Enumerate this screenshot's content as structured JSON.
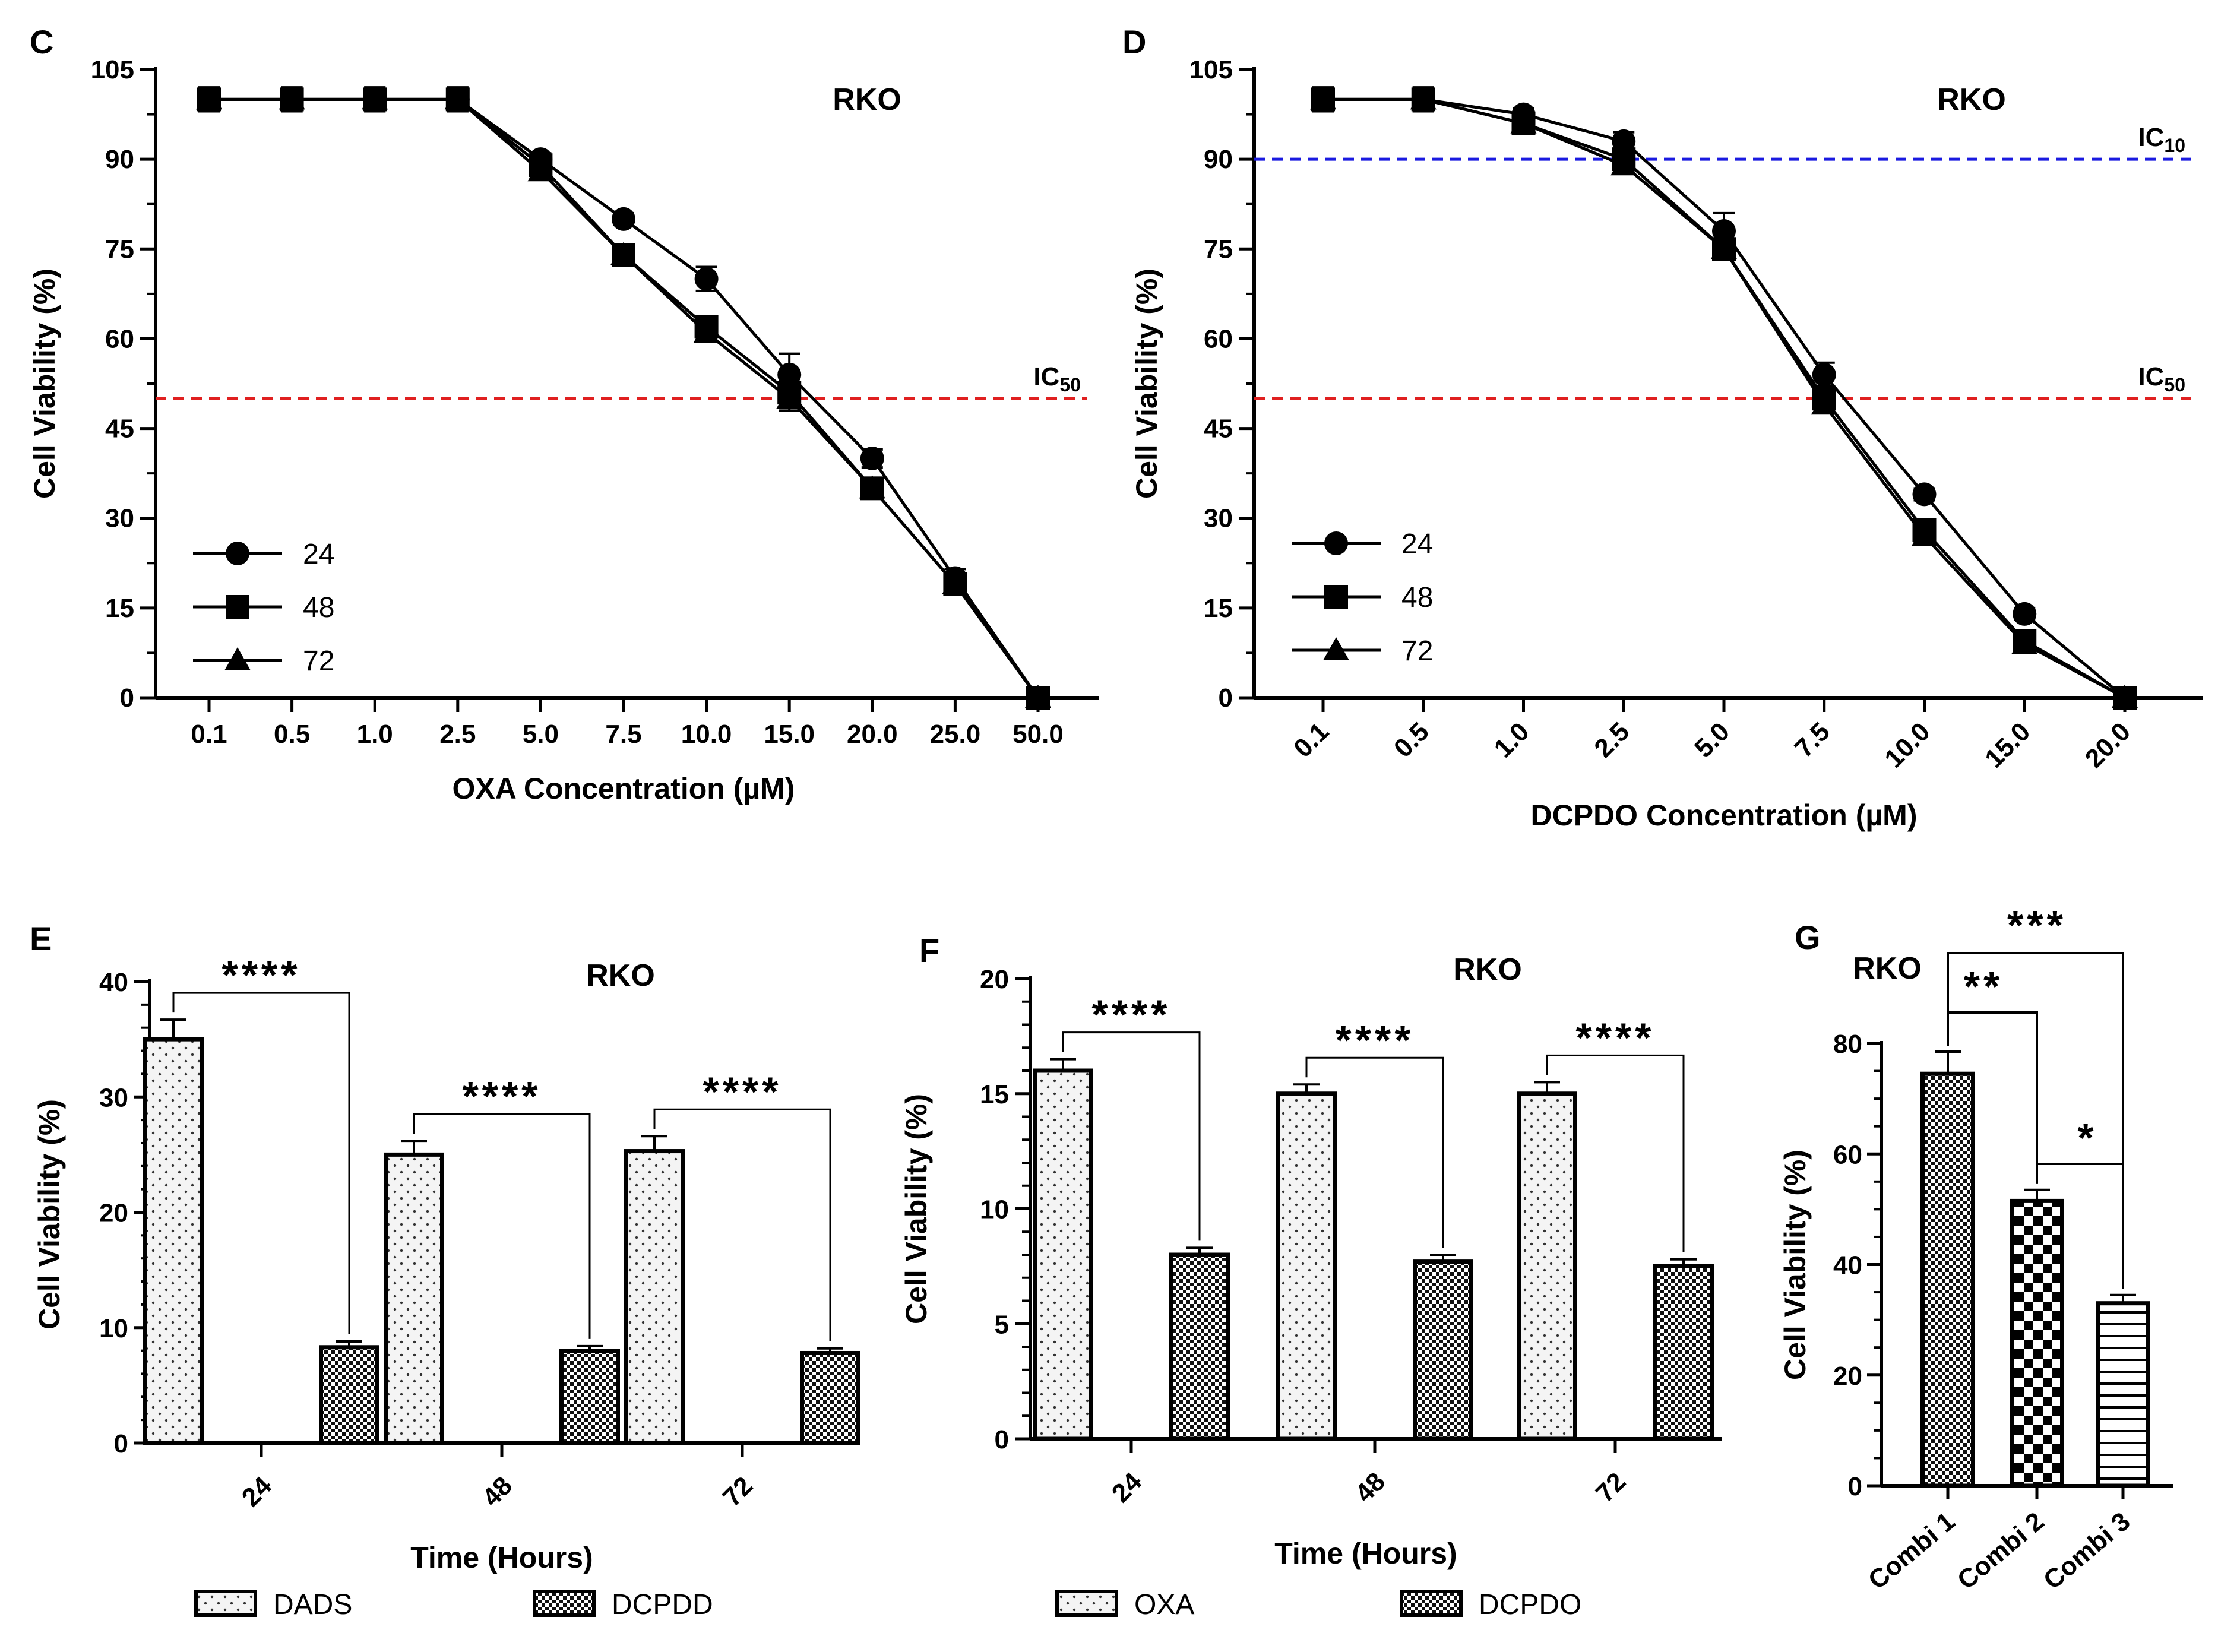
{
  "colors": {
    "ic50": "#e02020",
    "ic10": "#1a1ae0",
    "ink": "#000000"
  },
  "chart_data": [
    {
      "id": "C",
      "type": "line",
      "title": "RKO",
      "categories": [
        "0.1",
        "0.5",
        "1.0",
        "2.5",
        "5.0",
        "7.5",
        "10.0",
        "15.0",
        "20.0",
        "25.0",
        "50.0"
      ],
      "ylim": [
        0,
        105
      ],
      "yticks": [
        0,
        15,
        30,
        45,
        60,
        75,
        90,
        105
      ],
      "xlabel": "OXA Concentration (µM)",
      "ylabel": "Cell Viability (%)",
      "hlines": [
        {
          "y": 50,
          "label_main": "IC",
          "label_sub": "50",
          "color": "#e02020"
        }
      ],
      "legend": [
        "24",
        "48",
        "72"
      ],
      "series": [
        {
          "name": "24",
          "marker": "circle",
          "values": [
            100,
            100,
            100,
            100,
            90,
            80,
            70,
            54,
            40,
            20,
            0
          ],
          "err": [
            2,
            2,
            2,
            2,
            1,
            1,
            2,
            3.5,
            1.5,
            1.5,
            0
          ]
        },
        {
          "name": "48",
          "marker": "square",
          "values": [
            100,
            100,
            100,
            100,
            89,
            74,
            62,
            51,
            35,
            19,
            0
          ],
          "err": [
            2,
            2,
            2,
            2,
            1.5,
            1.5,
            1.5,
            3,
            1.5,
            1.5,
            0
          ]
        },
        {
          "name": "72",
          "marker": "triangle",
          "values": [
            100,
            100,
            100,
            100,
            88,
            74,
            61,
            50,
            35,
            19,
            0
          ],
          "err": [
            0,
            0,
            0,
            0,
            0,
            0,
            0,
            0,
            0,
            0,
            0
          ]
        }
      ]
    },
    {
      "id": "D",
      "type": "line",
      "title": "RKO",
      "categories": [
        "0.1",
        "0.5",
        "1.0",
        "2.5",
        "5.0",
        "7.5",
        "10.0",
        "15.0",
        "20.0"
      ],
      "ylim": [
        0,
        105
      ],
      "yticks": [
        0,
        15,
        30,
        45,
        60,
        75,
        90,
        105
      ],
      "xlabel": "DCPDO Concentration (µM)",
      "ylabel": "Cell Viability (%)",
      "hlines": [
        {
          "y": 90,
          "label_main": "IC",
          "label_sub": "10",
          "color": "#1a1ae0"
        },
        {
          "y": 50,
          "label_main": "IC",
          "label_sub": "50",
          "color": "#e02020"
        }
      ],
      "legend": [
        "24",
        "48",
        "72"
      ],
      "series": [
        {
          "name": "24",
          "marker": "circle",
          "values": [
            100,
            100,
            97.5,
            93,
            78,
            54,
            34,
            14,
            0
          ],
          "err": [
            2,
            2,
            1,
            1.5,
            3,
            2,
            1,
            1,
            0
          ]
        },
        {
          "name": "48",
          "marker": "square",
          "values": [
            100,
            100,
            96,
            90,
            75,
            50,
            28,
            9.5,
            0
          ],
          "err": [
            2,
            2,
            1,
            1.5,
            1.5,
            1.5,
            1.5,
            1,
            0
          ]
        },
        {
          "name": "72",
          "marker": "triangle",
          "values": [
            100,
            100,
            96,
            89,
            75,
            49,
            27,
            9,
            0
          ],
          "err": [
            0,
            0,
            0,
            0,
            0,
            0,
            0,
            0,
            0
          ]
        }
      ]
    },
    {
      "id": "E",
      "type": "bar",
      "title": "RKO",
      "categories": [
        "24",
        "48",
        "72"
      ],
      "ylim": [
        0,
        40
      ],
      "yticks": [
        0,
        10,
        20,
        30,
        40
      ],
      "xlabel": "Time (Hours)",
      "ylabel": "Cell Viability (%)",
      "series": [
        {
          "name": "DADS",
          "pattern": "dots",
          "values": [
            35,
            25,
            25.3
          ],
          "err": [
            1.7,
            1.2,
            1.3
          ]
        },
        {
          "name": "DCPDD",
          "pattern": "check",
          "values": [
            8.3,
            8,
            7.8
          ],
          "err": [
            0.5,
            0.4,
            0.4
          ]
        }
      ],
      "significance": [
        "****",
        "****",
        "****"
      ]
    },
    {
      "id": "F",
      "type": "bar",
      "title": "RKO",
      "categories": [
        "24",
        "48",
        "72"
      ],
      "ylim": [
        0,
        20
      ],
      "yticks": [
        0,
        5,
        10,
        15,
        20
      ],
      "xlabel": "Time (Hours)",
      "ylabel": "Cell Viability (%)",
      "series": [
        {
          "name": "OXA",
          "pattern": "dots",
          "values": [
            16,
            15,
            15
          ],
          "err": [
            0.5,
            0.4,
            0.5
          ]
        },
        {
          "name": "DCPDO",
          "pattern": "check",
          "values": [
            8,
            7.7,
            7.5
          ],
          "err": [
            0.3,
            0.3,
            0.3
          ]
        }
      ],
      "significance": [
        "****",
        "****",
        "****"
      ]
    },
    {
      "id": "G",
      "type": "bar",
      "title": "RKO",
      "categories": [
        "Combi 1",
        "Combi 2",
        "Combi 3"
      ],
      "ylim": [
        0,
        80
      ],
      "yticks": [
        0,
        20,
        40,
        60,
        80
      ],
      "ylabel": "Cell Viability (%)",
      "values": [
        74.5,
        51.5,
        33
      ],
      "err": [
        4,
        2,
        1.5
      ],
      "patterns": [
        "check",
        "checker",
        "hlines"
      ],
      "comparisons": [
        {
          "from": 0,
          "to": 1,
          "label": "**"
        },
        {
          "from": 0,
          "to": 2,
          "label": "***"
        },
        {
          "from": 1,
          "to": 2,
          "label": "*"
        }
      ]
    }
  ]
}
